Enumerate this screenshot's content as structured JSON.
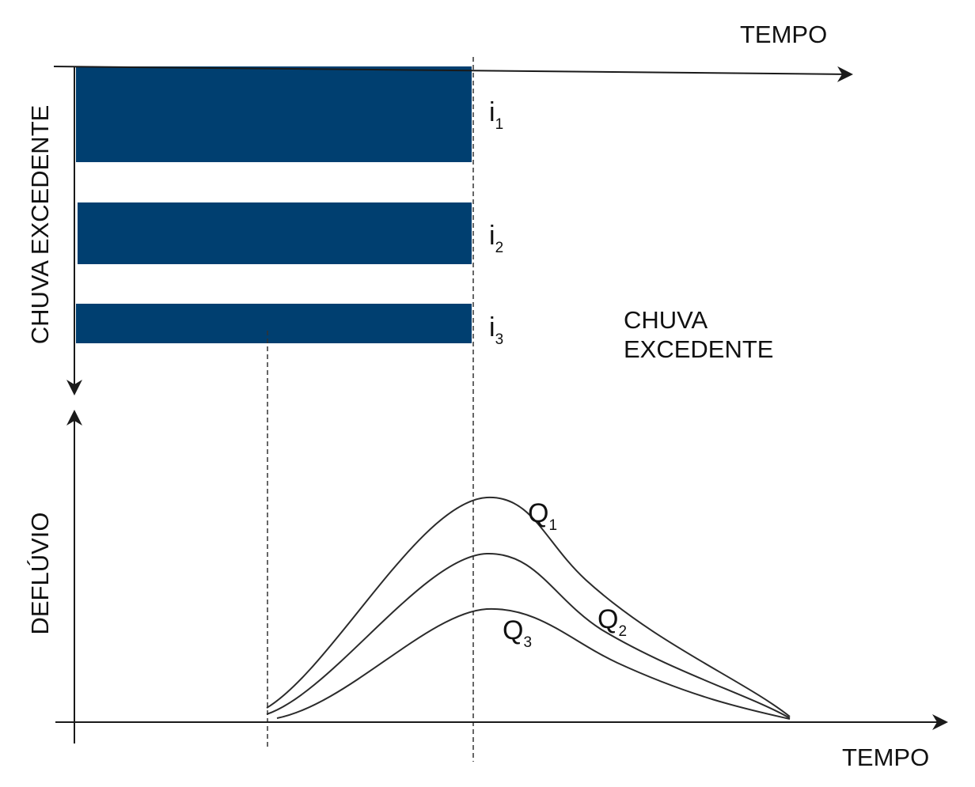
{
  "colors": {
    "bar": "#003f70",
    "axis": "#1a1a1a",
    "curve": "#2b2b2b",
    "guide": "#333333"
  },
  "top_chart": {
    "x_axis_label": "TEMPO",
    "y_axis_label": "CHUVA EXCEDENTE",
    "side_label_line1": "CHUVA",
    "side_label_line2": "EXCEDENTE",
    "bars": [
      {
        "symbol": "i",
        "subscript": "1"
      },
      {
        "symbol": "i",
        "subscript": "2"
      },
      {
        "symbol": "i",
        "subscript": "3"
      }
    ]
  },
  "bottom_chart": {
    "x_axis_label": "TEMPO",
    "y_axis_label": "DEFLÚVIO",
    "curves": [
      {
        "symbol": "Q",
        "subscript": "1"
      },
      {
        "symbol": "Q",
        "subscript": "2"
      },
      {
        "symbol": "Q",
        "subscript": "3"
      }
    ]
  }
}
